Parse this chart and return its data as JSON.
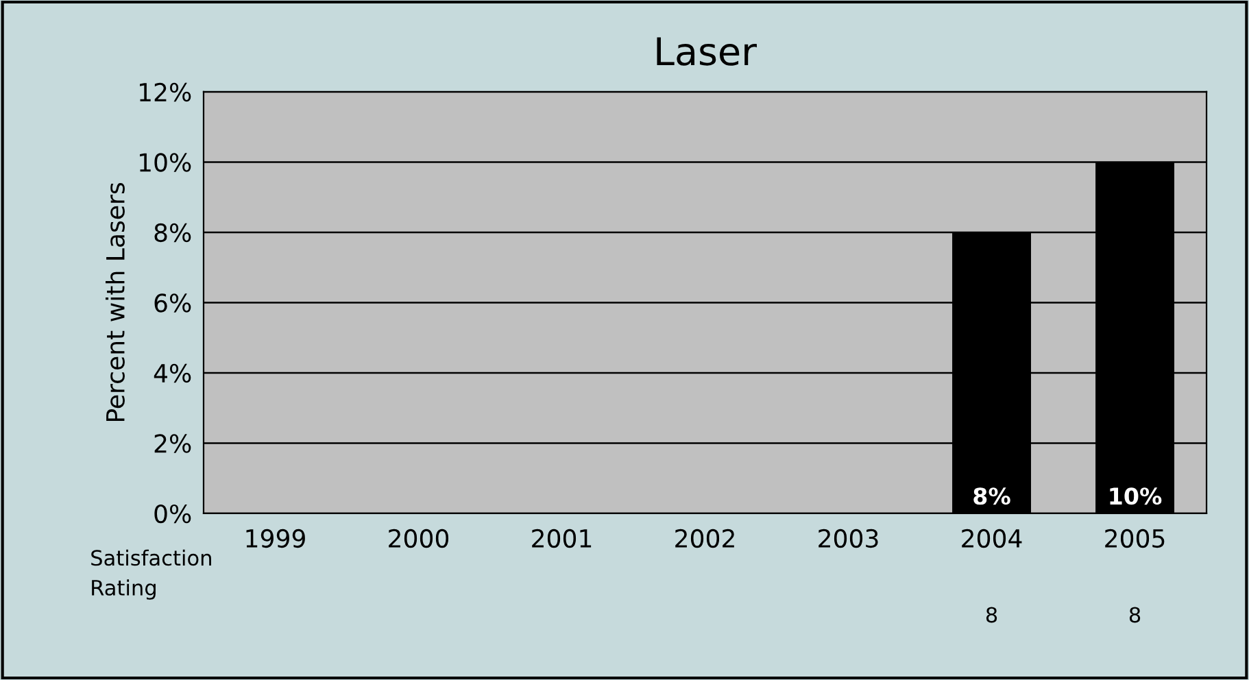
{
  "chart_data": {
    "type": "bar",
    "title": "Laser",
    "ylabel": "Percent with Lasers",
    "categories": [
      "1999",
      "2000",
      "2001",
      "2002",
      "2003",
      "2004",
      "2005"
    ],
    "series": [
      {
        "color": "#000000",
        "values": [
          null,
          null,
          null,
          null,
          null,
          8,
          10
        ],
        "value_labels": [
          null,
          null,
          null,
          null,
          null,
          "8%",
          "10%"
        ]
      }
    ],
    "ylim": [
      0,
      12
    ],
    "yticks": [
      {
        "value": 0,
        "label": "0%"
      },
      {
        "value": 2,
        "label": "2%"
      },
      {
        "value": 4,
        "label": "4%"
      },
      {
        "value": 6,
        "label": "6%"
      },
      {
        "value": 8,
        "label": "8%"
      },
      {
        "value": 10,
        "label": "10%"
      },
      {
        "value": 12,
        "label": "12%"
      }
    ],
    "grid": "y",
    "legend": false,
    "annotations": [
      "Satisfaction\nRating",
      "8",
      "8"
    ]
  }
}
